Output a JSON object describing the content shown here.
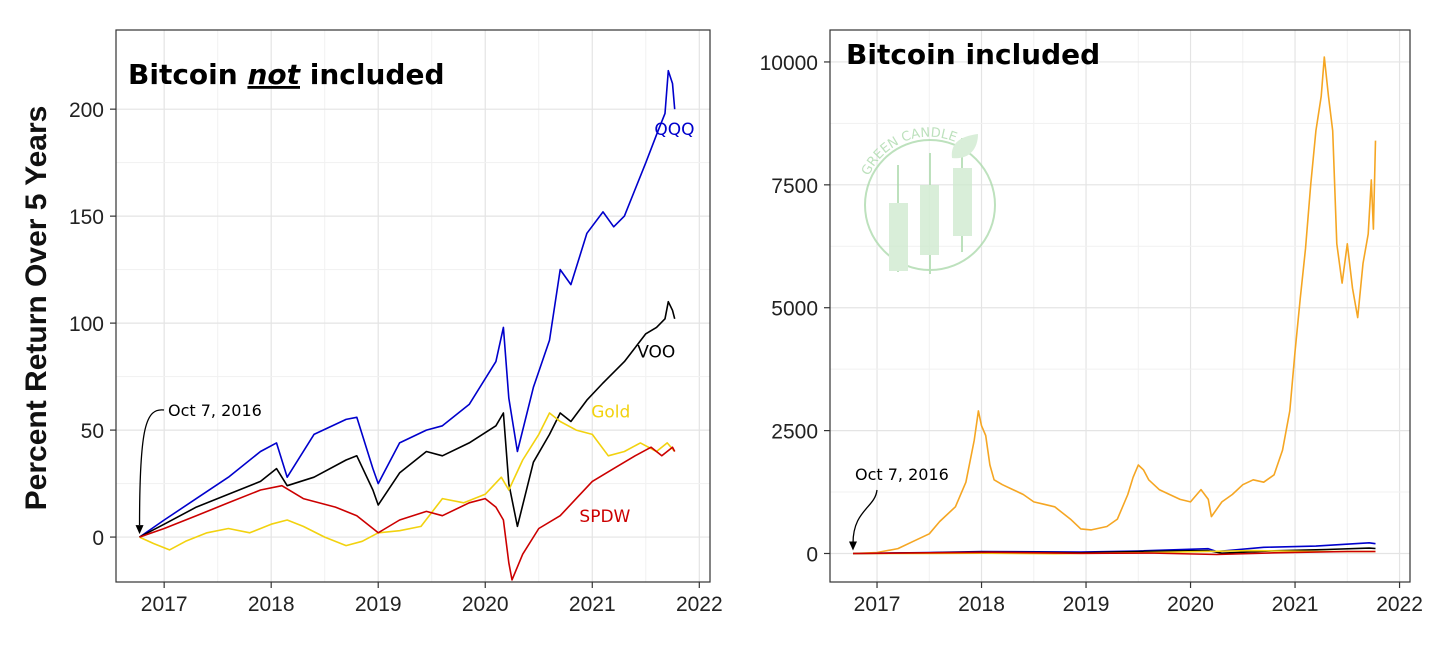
{
  "y_axis_label": "Percent Return Over 5 Years",
  "watermark": {
    "text": "GREEN CANDLE",
    "color": "#a8d8a8"
  },
  "chart_data": [
    {
      "type": "line",
      "title": "Bitcoin not included",
      "title_parts": [
        "Bitcoin ",
        "not",
        " included"
      ],
      "xlim": [
        2016.55,
        2022.1
      ],
      "ylim": [
        -21,
        237
      ],
      "x_ticks": [
        2017,
        2018,
        2019,
        2020,
        2021,
        2022
      ],
      "y_ticks": [
        0,
        50,
        100,
        150,
        200
      ],
      "grid": true,
      "annotation": {
        "text": "Oct 7, 2016",
        "x": 2016.77,
        "y": 0
      },
      "series": [
        {
          "name": "QQQ",
          "color": "#0000cc",
          "points": [
            [
              2016.77,
              0
            ],
            [
              2017.0,
              8
            ],
            [
              2017.3,
              18
            ],
            [
              2017.6,
              28
            ],
            [
              2017.9,
              40
            ],
            [
              2018.05,
              44
            ],
            [
              2018.15,
              28
            ],
            [
              2018.4,
              48
            ],
            [
              2018.7,
              55
            ],
            [
              2018.8,
              56
            ],
            [
              2018.95,
              32
            ],
            [
              2019.0,
              25
            ],
            [
              2019.2,
              44
            ],
            [
              2019.45,
              50
            ],
            [
              2019.6,
              52
            ],
            [
              2019.85,
              62
            ],
            [
              2020.1,
              82
            ],
            [
              2020.17,
              98
            ],
            [
              2020.22,
              65
            ],
            [
              2020.3,
              40
            ],
            [
              2020.45,
              70
            ],
            [
              2020.6,
              92
            ],
            [
              2020.7,
              125
            ],
            [
              2020.8,
              118
            ],
            [
              2020.95,
              142
            ],
            [
              2021.1,
              152
            ],
            [
              2021.2,
              145
            ],
            [
              2021.3,
              150
            ],
            [
              2021.5,
              175
            ],
            [
              2021.6,
              188
            ],
            [
              2021.68,
              198
            ],
            [
              2021.71,
              218
            ],
            [
              2021.75,
              212
            ],
            [
              2021.77,
              200
            ]
          ],
          "label_xy": [
            2021.58,
            188
          ]
        },
        {
          "name": "VOO",
          "color": "#000000",
          "points": [
            [
              2016.77,
              0
            ],
            [
              2017.0,
              6
            ],
            [
              2017.3,
              14
            ],
            [
              2017.6,
              20
            ],
            [
              2017.9,
              26
            ],
            [
              2018.05,
              32
            ],
            [
              2018.15,
              24
            ],
            [
              2018.4,
              28
            ],
            [
              2018.7,
              36
            ],
            [
              2018.8,
              38
            ],
            [
              2018.95,
              22
            ],
            [
              2019.0,
              15
            ],
            [
              2019.2,
              30
            ],
            [
              2019.45,
              40
            ],
            [
              2019.6,
              38
            ],
            [
              2019.85,
              44
            ],
            [
              2020.1,
              52
            ],
            [
              2020.17,
              58
            ],
            [
              2020.22,
              25
            ],
            [
              2020.3,
              5
            ],
            [
              2020.45,
              35
            ],
            [
              2020.6,
              48
            ],
            [
              2020.7,
              58
            ],
            [
              2020.8,
              54
            ],
            [
              2020.95,
              64
            ],
            [
              2021.1,
              72
            ],
            [
              2021.3,
              82
            ],
            [
              2021.5,
              95
            ],
            [
              2021.6,
              98
            ],
            [
              2021.68,
              102
            ],
            [
              2021.71,
              110
            ],
            [
              2021.75,
              106
            ],
            [
              2021.77,
              102
            ]
          ],
          "label_xy": [
            2021.42,
            84
          ]
        },
        {
          "name": "Gold",
          "color": "#f2d20f",
          "points": [
            [
              2016.77,
              0
            ],
            [
              2016.9,
              -3
            ],
            [
              2017.05,
              -6
            ],
            [
              2017.2,
              -2
            ],
            [
              2017.4,
              2
            ],
            [
              2017.6,
              4
            ],
            [
              2017.8,
              2
            ],
            [
              2018.0,
              6
            ],
            [
              2018.15,
              8
            ],
            [
              2018.3,
              5
            ],
            [
              2018.5,
              0
            ],
            [
              2018.7,
              -4
            ],
            [
              2018.85,
              -2
            ],
            [
              2019.0,
              2
            ],
            [
              2019.2,
              3
            ],
            [
              2019.4,
              5
            ],
            [
              2019.6,
              18
            ],
            [
              2019.8,
              16
            ],
            [
              2020.0,
              20
            ],
            [
              2020.15,
              28
            ],
            [
              2020.22,
              22
            ],
            [
              2020.35,
              36
            ],
            [
              2020.5,
              48
            ],
            [
              2020.6,
              58
            ],
            [
              2020.7,
              54
            ],
            [
              2020.85,
              50
            ],
            [
              2021.0,
              48
            ],
            [
              2021.15,
              38
            ],
            [
              2021.3,
              40
            ],
            [
              2021.45,
              44
            ],
            [
              2021.6,
              40
            ],
            [
              2021.7,
              44
            ],
            [
              2021.77,
              40
            ]
          ],
          "label_xy": [
            2020.99,
            56
          ]
        },
        {
          "name": "SPDW",
          "color": "#cc0000",
          "points": [
            [
              2016.77,
              0
            ],
            [
              2017.0,
              4
            ],
            [
              2017.3,
              10
            ],
            [
              2017.6,
              16
            ],
            [
              2017.9,
              22
            ],
            [
              2018.1,
              24
            ],
            [
              2018.3,
              18
            ],
            [
              2018.6,
              14
            ],
            [
              2018.8,
              10
            ],
            [
              2018.95,
              4
            ],
            [
              2019.0,
              2
            ],
            [
              2019.2,
              8
            ],
            [
              2019.45,
              12
            ],
            [
              2019.6,
              10
            ],
            [
              2019.85,
              16
            ],
            [
              2020.0,
              18
            ],
            [
              2020.1,
              14
            ],
            [
              2020.17,
              8
            ],
            [
              2020.22,
              -12
            ],
            [
              2020.25,
              -20
            ],
            [
              2020.35,
              -8
            ],
            [
              2020.5,
              4
            ],
            [
              2020.7,
              10
            ],
            [
              2020.85,
              18
            ],
            [
              2021.0,
              26
            ],
            [
              2021.2,
              32
            ],
            [
              2021.4,
              38
            ],
            [
              2021.55,
              42
            ],
            [
              2021.65,
              38
            ],
            [
              2021.75,
              42
            ],
            [
              2021.77,
              40
            ]
          ],
          "label_xy": [
            2020.88,
            7
          ]
        }
      ]
    },
    {
      "type": "line",
      "title": "Bitcoin included",
      "xlim": [
        2016.55,
        2022.1
      ],
      "ylim": [
        -580,
        10650
      ],
      "x_ticks": [
        2017,
        2018,
        2019,
        2020,
        2021,
        2022
      ],
      "y_ticks": [
        0,
        2500,
        5000,
        7500,
        10000
      ],
      "grid": true,
      "annotation": {
        "text": "Oct 7, 2016",
        "x": 2016.77,
        "y": 0
      },
      "series": [
        {
          "name": "Bitcoin",
          "color": "#f5a623",
          "points": [
            [
              2016.77,
              0
            ],
            [
              2017.0,
              20
            ],
            [
              2017.2,
              100
            ],
            [
              2017.35,
              250
            ],
            [
              2017.5,
              400
            ],
            [
              2017.6,
              650
            ],
            [
              2017.75,
              950
            ],
            [
              2017.85,
              1450
            ],
            [
              2017.93,
              2300
            ],
            [
              2017.97,
              2900
            ],
            [
              2018.0,
              2600
            ],
            [
              2018.04,
              2400
            ],
            [
              2018.08,
              1800
            ],
            [
              2018.12,
              1500
            ],
            [
              2018.2,
              1400
            ],
            [
              2018.3,
              1300
            ],
            [
              2018.4,
              1200
            ],
            [
              2018.5,
              1050
            ],
            [
              2018.6,
              1000
            ],
            [
              2018.7,
              950
            ],
            [
              2018.85,
              700
            ],
            [
              2018.95,
              500
            ],
            [
              2019.05,
              480
            ],
            [
              2019.2,
              550
            ],
            [
              2019.3,
              700
            ],
            [
              2019.4,
              1200
            ],
            [
              2019.45,
              1550
            ],
            [
              2019.5,
              1800
            ],
            [
              2019.55,
              1700
            ],
            [
              2019.6,
              1500
            ],
            [
              2019.7,
              1300
            ],
            [
              2019.8,
              1200
            ],
            [
              2019.9,
              1100
            ],
            [
              2020.0,
              1050
            ],
            [
              2020.1,
              1300
            ],
            [
              2020.17,
              1100
            ],
            [
              2020.2,
              750
            ],
            [
              2020.3,
              1050
            ],
            [
              2020.4,
              1200
            ],
            [
              2020.5,
              1400
            ],
            [
              2020.6,
              1500
            ],
            [
              2020.7,
              1450
            ],
            [
              2020.8,
              1600
            ],
            [
              2020.88,
              2100
            ],
            [
              2020.95,
              2900
            ],
            [
              2021.0,
              4100
            ],
            [
              2021.05,
              5200
            ],
            [
              2021.1,
              6200
            ],
            [
              2021.15,
              7500
            ],
            [
              2021.2,
              8600
            ],
            [
              2021.25,
              9300
            ],
            [
              2021.28,
              10100
            ],
            [
              2021.32,
              9300
            ],
            [
              2021.36,
              8600
            ],
            [
              2021.4,
              6300
            ],
            [
              2021.45,
              5500
            ],
            [
              2021.5,
              6300
            ],
            [
              2021.55,
              5400
            ],
            [
              2021.6,
              4800
            ],
            [
              2021.65,
              5900
            ],
            [
              2021.7,
              6500
            ],
            [
              2021.73,
              7600
            ],
            [
              2021.75,
              6600
            ],
            [
              2021.77,
              8400
            ]
          ]
        },
        {
          "name": "QQQ",
          "color": "#0000cc",
          "points": [
            [
              2016.77,
              0
            ],
            [
              2017.5,
              20
            ],
            [
              2018.0,
              40
            ],
            [
              2018.95,
              30
            ],
            [
              2019.5,
              50
            ],
            [
              2020.17,
              98
            ],
            [
              2020.25,
              40
            ],
            [
              2020.7,
              125
            ],
            [
              2021.2,
              150
            ],
            [
              2021.71,
              218
            ],
            [
              2021.77,
              200
            ]
          ]
        },
        {
          "name": "VOO",
          "color": "#000000",
          "points": [
            [
              2016.77,
              0
            ],
            [
              2017.5,
              15
            ],
            [
              2018.0,
              30
            ],
            [
              2018.95,
              15
            ],
            [
              2019.5,
              40
            ],
            [
              2020.17,
              58
            ],
            [
              2020.3,
              5
            ],
            [
              2020.8,
              55
            ],
            [
              2021.3,
              82
            ],
            [
              2021.71,
              110
            ],
            [
              2021.77,
              102
            ]
          ]
        },
        {
          "name": "Gold",
          "color": "#f2d20f",
          "points": [
            [
              2016.77,
              0
            ],
            [
              2017.5,
              2
            ],
            [
              2018.0,
              6
            ],
            [
              2018.7,
              -4
            ],
            [
              2019.5,
              15
            ],
            [
              2020.6,
              58
            ],
            [
              2021.2,
              38
            ],
            [
              2021.77,
              40
            ]
          ]
        },
        {
          "name": "SPDW",
          "color": "#cc0000",
          "points": [
            [
              2016.77,
              0
            ],
            [
              2017.5,
              14
            ],
            [
              2018.1,
              24
            ],
            [
              2018.95,
              4
            ],
            [
              2019.6,
              10
            ],
            [
              2020.25,
              -20
            ],
            [
              2020.8,
              15
            ],
            [
              2021.5,
              40
            ],
            [
              2021.77,
              40
            ]
          ]
        }
      ]
    }
  ]
}
